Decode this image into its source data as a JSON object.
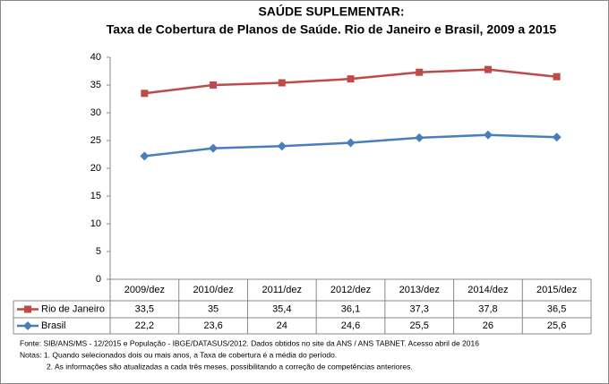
{
  "chart_data": {
    "type": "line",
    "title": "SAÚDE SUPLEMENTAR:",
    "subtitle": "Taxa de Cobertura de Planos de Saúde. Rio de Janeiro e Brasil, 2009 a 2015",
    "categories": [
      "2009/dez",
      "2010/dez",
      "2011/dez",
      "2012/dez",
      "2013/dez",
      "2014/dez",
      "2015/dez"
    ],
    "series": [
      {
        "name": "Rio de Janeiro",
        "color": "#be4b48",
        "marker": "square",
        "values": [
          33.5,
          35,
          35.4,
          36.1,
          37.3,
          37.8,
          36.5
        ],
        "value_labels": [
          "33,5",
          "35",
          "35,4",
          "36,1",
          "37,3",
          "37,8",
          "36,5"
        ]
      },
      {
        "name": "Brasil",
        "color": "#4a7ebb",
        "marker": "diamond",
        "values": [
          22.2,
          23.6,
          24,
          24.6,
          25.5,
          26,
          25.6
        ],
        "value_labels": [
          "22,2",
          "23,6",
          "24",
          "24,6",
          "25,5",
          "26",
          "25,6"
        ]
      }
    ],
    "ylim": [
      0,
      40
    ],
    "yticks": [
      0,
      5,
      10,
      15,
      20,
      25,
      30,
      35,
      40
    ],
    "grid": false,
    "notes": [
      "Fonte: SIB/ANS/MS - 12/2015 e População - IBGE/DATASUS/2012. Dados obtidos no site da ANS / ANS TABNET. Acesso abril de 2016",
      "Notas: 1. Quando selecionados dois ou mais anos, a Taxa de cobertura é a média do período.",
      "2. As informações são atualizadas a cada três meses, possibilitando a correção de competências anteriores."
    ]
  }
}
